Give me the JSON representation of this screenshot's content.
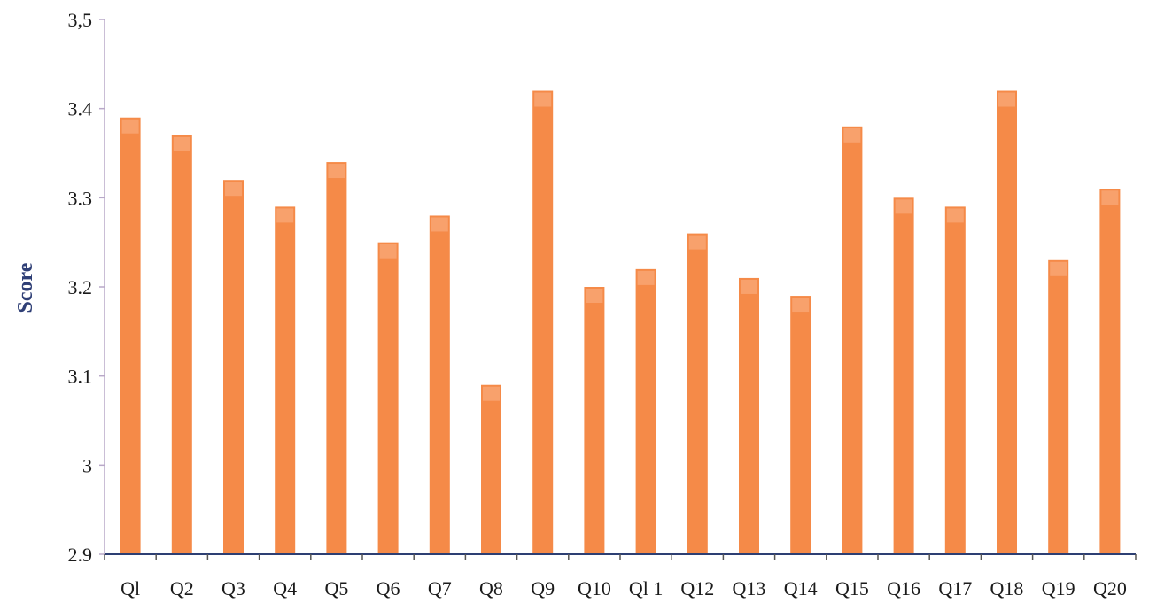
{
  "chart_data": {
    "type": "bar",
    "title": "",
    "xlabel": "",
    "ylabel": "Score",
    "categories": [
      "Q1",
      "Q2",
      "Q3",
      "Q4",
      "Q5",
      "Q6",
      "Q7",
      "Q8",
      "Q9",
      "Q10",
      "Q11",
      "Q12",
      "Q13",
      "Q14",
      "Q15",
      "Q16",
      "Q17",
      "Q18",
      "Q19",
      "Q20"
    ],
    "category_labels": [
      "Ql",
      "Q2",
      "Q3",
      "Q4",
      "Q5",
      "Q6",
      "Q7",
      "Q8",
      "Q9",
      "Q10",
      "Ql 1",
      "Q12",
      "Q13",
      "Q14",
      "Q15",
      "Q16",
      "Q17",
      "Q18",
      "Q19",
      "Q20"
    ],
    "values": [
      3.39,
      3.37,
      3.32,
      3.29,
      3.34,
      3.25,
      3.28,
      3.09,
      3.42,
      3.2,
      3.22,
      3.26,
      3.21,
      3.19,
      3.38,
      3.3,
      3.29,
      3.42,
      3.23,
      3.31
    ],
    "ylim": [
      2.9,
      3.5
    ],
    "yticks": [
      2.9,
      3.0,
      3.1,
      3.2,
      3.3,
      3.4,
      3.5
    ],
    "ytick_labels": [
      "2.9",
      "3",
      "3.1",
      "3.2",
      "3.3",
      "3.4",
      "3,5"
    ],
    "grid": false,
    "legend": "none",
    "colors": {
      "bar": "#f58a48",
      "bar_highlight": "#f9b48a",
      "y_axis": "#b8a8c8",
      "x_axis": "#2d3f73",
      "ylabel": "#2f3f76",
      "ticks": "#555555"
    }
  }
}
